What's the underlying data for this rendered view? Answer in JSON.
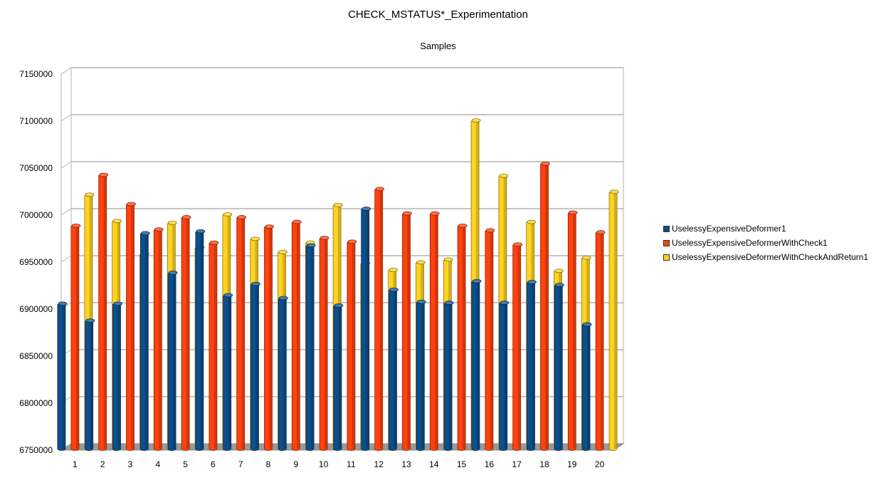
{
  "chart_data": {
    "type": "bar",
    "title": "CHECK_MSTATUS*_Experimentation",
    "subtitle": "Samples",
    "xlabel": "",
    "ylabel": "",
    "ylim": [
      6750000,
      7150000
    ],
    "yticks": [
      6750000,
      6800000,
      6850000,
      6900000,
      6950000,
      7000000,
      7050000,
      7100000,
      7150000
    ],
    "grid": true,
    "legend_position": "right",
    "categories": [
      "1",
      "2",
      "3",
      "4",
      "5",
      "6",
      "7",
      "8",
      "9",
      "10",
      "11",
      "12",
      "13",
      "14",
      "15",
      "16",
      "17",
      "18",
      "19",
      "20"
    ],
    "series": [
      {
        "name": "UselessyExpensiveDeformer1",
        "color": "#0d4f8c",
        "values": [
          6905000,
          6887000,
          6905000,
          6980000,
          6938000,
          6982000,
          6914000,
          6926000,
          6911000,
          6967000,
          6903000,
          7006000,
          6920000,
          6907000,
          6906000,
          6929000,
          6906000,
          6928000,
          6925000,
          6883000
        ]
      },
      {
        "name": "UselessyExpensiveDeformerWithCheck1",
        "color": "#ff420e",
        "values": [
          6988000,
          7042000,
          7011000,
          6984000,
          6997000,
          6970000,
          6997000,
          6987000,
          6992000,
          6975000,
          6971000,
          7027000,
          7001000,
          7001000,
          6988000,
          6983000,
          6968000,
          7054000,
          7002000,
          6981000
        ]
      },
      {
        "name": "UselessyExpensiveDeformerWithCheckAndReturn1",
        "color": "#ffd320",
        "values": [
          7021000,
          6993000,
          6958000,
          6991000,
          6965000,
          7000000,
          6974000,
          6960000,
          6970000,
          7010000,
          6948000,
          6941000,
          6949000,
          6952000,
          7100000,
          7041000,
          6992000,
          6940000,
          6954000,
          7024000
        ]
      }
    ]
  }
}
